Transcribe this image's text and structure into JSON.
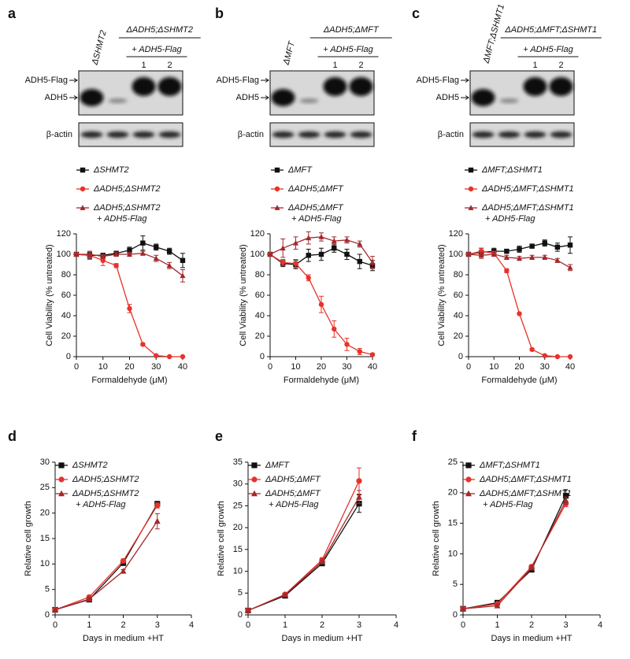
{
  "blots": [
    {
      "panel": "a",
      "lane_label": "ΔSHMT2",
      "group_label": "ΔADH5;ΔSHMT2",
      "treatment_label": "+ ADH5-Flag",
      "lanes": [
        "1",
        "2"
      ],
      "rows": [
        "ADH5-Flag",
        "ADH5",
        "β-actin"
      ]
    },
    {
      "panel": "b",
      "lane_label": "ΔMFT",
      "group_label": "ΔADH5;ΔMFT",
      "treatment_label": "+ ADH5-Flag",
      "lanes": [
        "1",
        "2"
      ],
      "rows": [
        "ADH5-Flag",
        "ADH5",
        "β-actin"
      ]
    },
    {
      "panel": "c",
      "lane_label": "ΔMFT;ΔSHMT1",
      "group_label": "ΔADH5;ΔMFT;ΔSHMT1",
      "treatment_label": "+ ADH5-Flag",
      "lanes": [
        "1",
        "2"
      ],
      "rows": [
        "ADH5-Flag",
        "ADH5",
        "β-actin"
      ]
    }
  ],
  "chart_data": [
    {
      "type": "line",
      "x": [
        0,
        5,
        10,
        15,
        20,
        25,
        30,
        35,
        40
      ],
      "xlim": [
        0,
        40
      ],
      "xticks": [
        0,
        10,
        20,
        30,
        40
      ],
      "ylim": [
        0,
        120
      ],
      "yticks": [
        0,
        20,
        40,
        60,
        80,
        100,
        120
      ],
      "xlabel": "Formaldehyde (μM)",
      "ylabel": "Cell Viability (% untreated)",
      "series": [
        {
          "name": "ΔSHMT2",
          "color": "#111111",
          "marker": "square",
          "values": [
            100,
            99,
            99,
            101,
            104,
            111,
            107,
            103,
            94
          ],
          "errors": [
            0,
            3,
            2,
            2,
            3,
            7,
            3,
            3,
            7
          ]
        },
        {
          "name": "ΔADH5;ΔSHMT2",
          "color": "#e8322a",
          "marker": "circle",
          "values": [
            100,
            99,
            94,
            89,
            47,
            12,
            1,
            0,
            0
          ],
          "errors": [
            0,
            4,
            5,
            2,
            4,
            1,
            0,
            0,
            0
          ]
        },
        {
          "name": "ΔADH5;ΔSHMT2",
          "name_line2": "+ ADH5-Flag",
          "color": "#a3282c",
          "marker": "triangle",
          "values": [
            100,
            100,
            98,
            100,
            100,
            101,
            96,
            89,
            79
          ],
          "errors": [
            0,
            3,
            2,
            2,
            2,
            2,
            3,
            3,
            6
          ]
        }
      ]
    },
    {
      "type": "line",
      "x": [
        0,
        5,
        10,
        15,
        20,
        25,
        30,
        35,
        40
      ],
      "xlim": [
        0,
        40
      ],
      "xticks": [
        0,
        10,
        20,
        30,
        40
      ],
      "ylim": [
        0,
        120
      ],
      "yticks": [
        0,
        20,
        40,
        60,
        80,
        100,
        120
      ],
      "xlabel": "Formaldehyde (μM)",
      "ylabel": "Cell Viability (% untreated)",
      "series": [
        {
          "name": "ΔMFT",
          "color": "#111111",
          "marker": "square",
          "values": [
            100,
            91,
            90,
            99,
            100,
            106,
            100,
            93,
            89
          ],
          "errors": [
            0,
            3,
            4,
            6,
            6,
            4,
            5,
            7,
            5
          ]
        },
        {
          "name": "ΔADH5;ΔMFT",
          "color": "#e8322a",
          "marker": "circle",
          "values": [
            100,
            92,
            91,
            77,
            51,
            27,
            12,
            5,
            2
          ],
          "errors": [
            0,
            3,
            4,
            3,
            8,
            8,
            6,
            3,
            1
          ]
        },
        {
          "name": "ΔADH5;ΔMFT",
          "name_line2": "+ ADH5-Flag",
          "color": "#a3282c",
          "marker": "triangle",
          "values": [
            100,
            106,
            111,
            116,
            117,
            113,
            114,
            110,
            92
          ],
          "errors": [
            0,
            9,
            6,
            6,
            4,
            4,
            3,
            3,
            6
          ]
        }
      ]
    },
    {
      "type": "line",
      "x": [
        0,
        5,
        10,
        15,
        20,
        25,
        30,
        35,
        40
      ],
      "xlim": [
        0,
        40
      ],
      "xticks": [
        0,
        10,
        20,
        30,
        40
      ],
      "ylim": [
        0,
        120
      ],
      "yticks": [
        0,
        20,
        40,
        60,
        80,
        100,
        120
      ],
      "xlabel": "Formaldehyde (μM)",
      "ylabel": "Cell Viability (% untreated)",
      "series": [
        {
          "name": "ΔMFT;ΔSHMT1",
          "color": "#111111",
          "marker": "square",
          "values": [
            100,
            102,
            103,
            103,
            105,
            108,
            111,
            107,
            109
          ],
          "errors": [
            0,
            4,
            3,
            2,
            3,
            2,
            3,
            4,
            8
          ]
        },
        {
          "name": "ΔADH5;ΔMFT;ΔSHMT1",
          "color": "#e8322a",
          "marker": "circle",
          "values": [
            100,
            103,
            101,
            84,
            42,
            7,
            1,
            0,
            0
          ],
          "errors": [
            0,
            3,
            2,
            2,
            1,
            1,
            0,
            0,
            0
          ]
        },
        {
          "name": "ΔADH5;ΔMFT;ΔSHMT1",
          "name_line2": "+ ADH5-Flag",
          "color": "#a3282c",
          "marker": "triangle",
          "values": [
            100,
            99,
            100,
            97,
            96,
            97,
            97,
            94,
            87
          ],
          "errors": [
            0,
            3,
            2,
            2,
            2,
            2,
            2,
            2,
            3
          ]
        }
      ]
    },
    {
      "type": "line",
      "panel": "d",
      "x": [
        0,
        1,
        2,
        3
      ],
      "xlim": [
        0,
        4
      ],
      "xticks": [
        0,
        1,
        2,
        3,
        4
      ],
      "ylim": [
        0,
        30
      ],
      "yticks": [
        0,
        5,
        10,
        15,
        20,
        25,
        30
      ],
      "xlabel": "Days in medium +HT",
      "ylabel": "Relative cell growth",
      "series": [
        {
          "name": "ΔSHMT2",
          "color": "#111111",
          "marker": "square",
          "values": [
            1,
            3.0,
            10.2,
            21.8
          ],
          "errors": [
            0,
            0.3,
            0.5,
            0.5
          ]
        },
        {
          "name": "ΔADH5;ΔSHMT2",
          "color": "#e8322a",
          "marker": "circle",
          "values": [
            1,
            3.5,
            10.6,
            21.5
          ],
          "errors": [
            0,
            0.3,
            0.4,
            0.5
          ]
        },
        {
          "name": "ΔADH5;ΔSHMT2",
          "name_line2": "+ ADH5-Flag",
          "color": "#a3282c",
          "marker": "triangle",
          "values": [
            1,
            3.1,
            8.6,
            18.4
          ],
          "errors": [
            0,
            0.3,
            0.3,
            1.5
          ]
        }
      ]
    },
    {
      "type": "line",
      "panel": "e",
      "x": [
        0,
        1,
        2,
        3
      ],
      "xlim": [
        0,
        4
      ],
      "xticks": [
        0,
        1,
        2,
        3,
        4
      ],
      "ylim": [
        0,
        35
      ],
      "yticks": [
        0,
        5,
        10,
        15,
        20,
        25,
        30,
        35
      ],
      "xlabel": "Days in medium +HT",
      "ylabel": "Relative cell growth",
      "series": [
        {
          "name": "ΔMFT",
          "color": "#111111",
          "marker": "square",
          "values": [
            1,
            4.4,
            11.8,
            25.5
          ],
          "errors": [
            0,
            0.2,
            0.5,
            2
          ]
        },
        {
          "name": "ΔADH5;ΔMFT",
          "color": "#e8322a",
          "marker": "circle",
          "values": [
            1,
            4.7,
            12.6,
            30.7
          ],
          "errors": [
            0,
            0.2,
            0.5,
            3
          ]
        },
        {
          "name": "ΔADH5;ΔMFT",
          "name_line2": "+ ADH5-Flag",
          "color": "#a3282c",
          "marker": "triangle",
          "values": [
            1,
            4.6,
            12.2,
            27
          ],
          "errors": [
            0,
            0.2,
            0.4,
            1.5
          ]
        }
      ]
    },
    {
      "type": "line",
      "panel": "f",
      "x": [
        0,
        1,
        2,
        3
      ],
      "xlim": [
        0,
        4
      ],
      "xticks": [
        0,
        1,
        2,
        3,
        4
      ],
      "ylim": [
        0,
        25
      ],
      "yticks": [
        0,
        5,
        10,
        15,
        20,
        25
      ],
      "xlabel": "Days in medium +HT",
      "ylabel": "Relative cell growth",
      "series": [
        {
          "name": "ΔMFT;ΔSHMT1",
          "color": "#111111",
          "marker": "square",
          "values": [
            1,
            2.0,
            7.4,
            19.5
          ],
          "errors": [
            0,
            0.3,
            0.3,
            1
          ]
        },
        {
          "name": "ΔADH5;ΔMFT;ΔSHMT1",
          "color": "#e8322a",
          "marker": "circle",
          "values": [
            1,
            1.8,
            7.9,
            18.2
          ],
          "errors": [
            0,
            0.2,
            0.3,
            0.5
          ]
        },
        {
          "name": "ΔADH5;ΔMFT;ΔSHMT1",
          "name_line2": "+ ADH5-Flag",
          "color": "#a3282c",
          "marker": "triangle",
          "values": [
            1,
            1.5,
            7.7,
            18.7
          ],
          "errors": [
            0,
            0.2,
            0.3,
            0.6
          ]
        }
      ]
    }
  ]
}
